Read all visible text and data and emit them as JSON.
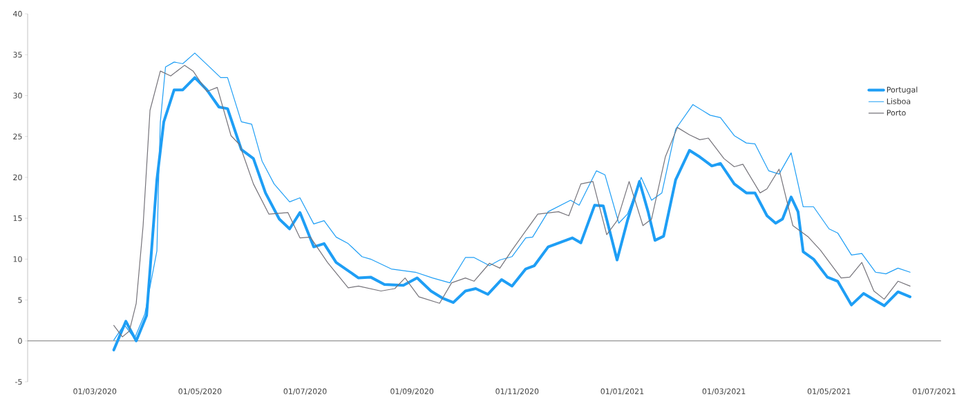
{
  "chart_data": {
    "type": "line",
    "xlim": [
      "2020-01-22",
      "2021-07-05"
    ],
    "ylim": [
      -5,
      40
    ],
    "xticks": [
      {
        "value": "2020-03-01",
        "label": "01/03/2020"
      },
      {
        "value": "2020-05-01",
        "label": "01/05/2020"
      },
      {
        "value": "2020-07-01",
        "label": "01/07/2020"
      },
      {
        "value": "2020-09-01",
        "label": "01/09/2020"
      },
      {
        "value": "2020-11-01",
        "label": "01/11/2020"
      },
      {
        "value": "2021-01-01",
        "label": "01/01/2021"
      },
      {
        "value": "2021-03-01",
        "label": "01/03/2021"
      },
      {
        "value": "2021-05-01",
        "label": "01/05/2021"
      },
      {
        "value": "2021-07-01",
        "label": "01/07/2021"
      }
    ],
    "yticks": [
      -5,
      0,
      5,
      10,
      15,
      20,
      25,
      30,
      35,
      40
    ],
    "legend": "right",
    "marker": "none",
    "line_style": "solid",
    "series": [
      {
        "name": "Portugal",
        "color": "#1e9ef5",
        "x": [
          "2020-03-12",
          "2020-03-19",
          "2020-03-25",
          "2020-03-31",
          "2020-04-06",
          "2020-04-10",
          "2020-04-16",
          "2020-04-21",
          "2020-04-28",
          "2020-05-05",
          "2020-05-12",
          "2020-05-17",
          "2020-05-25",
          "2020-06-01",
          "2020-06-08",
          "2020-06-16",
          "2020-06-22",
          "2020-06-28",
          "2020-07-06",
          "2020-07-12",
          "2020-07-19",
          "2020-08-01",
          "2020-08-08",
          "2020-08-16",
          "2020-08-27",
          "2020-09-04",
          "2020-09-12",
          "2020-09-19",
          "2020-09-25",
          "2020-10-02",
          "2020-10-08",
          "2020-10-15",
          "2020-10-23",
          "2020-10-29",
          "2020-11-06",
          "2020-11-11",
          "2020-11-19",
          "2020-12-03",
          "2020-12-08",
          "2020-12-16",
          "2020-12-21",
          "2020-12-29",
          "2021-01-04",
          "2021-01-11",
          "2021-01-16",
          "2021-01-20",
          "2021-01-25",
          "2021-02-01",
          "2021-02-09",
          "2021-02-15",
          "2021-02-22",
          "2021-02-27",
          "2021-03-07",
          "2021-03-14",
          "2021-03-19",
          "2021-03-26",
          "2021-03-31",
          "2021-04-04",
          "2021-04-09",
          "2021-04-13",
          "2021-04-16",
          "2021-04-22",
          "2021-04-30",
          "2021-05-06",
          "2021-05-14",
          "2021-05-21",
          "2021-06-02",
          "2021-06-10",
          "2021-06-17"
        ],
        "values": [
          -1.1,
          2.4,
          0.0,
          3.1,
          19.7,
          26.8,
          30.7,
          30.7,
          32.2,
          30.7,
          28.6,
          28.4,
          23.4,
          22.3,
          18.1,
          14.9,
          13.7,
          15.7,
          11.5,
          11.9,
          9.6,
          7.7,
          7.8,
          6.9,
          6.8,
          7.7,
          6.1,
          5.2,
          4.7,
          6.1,
          6.4,
          5.7,
          7.5,
          6.7,
          8.8,
          9.2,
          11.5,
          12.6,
          12.0,
          16.6,
          16.5,
          9.9,
          14.7,
          19.5,
          15.8,
          12.3,
          12.8,
          19.7,
          23.3,
          22.5,
          21.4,
          21.7,
          19.2,
          18.1,
          18.1,
          15.3,
          14.4,
          14.9,
          17.6,
          15.8,
          10.9,
          10.0,
          7.8,
          7.3,
          4.4,
          5.8,
          4.3,
          6.0,
          5.4
        ]
      },
      {
        "name": "Lisboa",
        "color": "#1e9ef5",
        "x": [
          "2020-03-12",
          "2020-03-18",
          "2020-03-24",
          "2020-03-30",
          "2020-04-06",
          "2020-04-07",
          "2020-04-08",
          "2020-04-11",
          "2020-04-16",
          "2020-04-21",
          "2020-04-28",
          "2020-05-05",
          "2020-05-13",
          "2020-05-17",
          "2020-05-25",
          "2020-05-31",
          "2020-06-06",
          "2020-06-13",
          "2020-06-22",
          "2020-06-28",
          "2020-07-06",
          "2020-07-12",
          "2020-07-19",
          "2020-07-26",
          "2020-08-03",
          "2020-08-08",
          "2020-08-20",
          "2020-09-03",
          "2020-09-13",
          "2020-09-23",
          "2020-10-02",
          "2020-10-07",
          "2020-10-16",
          "2020-10-22",
          "2020-10-29",
          "2020-11-06",
          "2020-11-10",
          "2020-11-19",
          "2020-12-02",
          "2020-12-07",
          "2020-12-17",
          "2020-12-22",
          "2020-12-30",
          "2021-01-04",
          "2021-01-12",
          "2021-01-18",
          "2021-01-24",
          "2021-02-01",
          "2021-02-11",
          "2021-02-21",
          "2021-02-27",
          "2021-03-07",
          "2021-03-14",
          "2021-03-19",
          "2021-03-27",
          "2021-04-02",
          "2021-04-09",
          "2021-04-16",
          "2021-04-22",
          "2021-05-01",
          "2021-05-06",
          "2021-05-14",
          "2021-05-20",
          "2021-05-28",
          "2021-06-03",
          "2021-06-10",
          "2021-06-17"
        ],
        "values": [
          0.1,
          2.0,
          0.3,
          3.3,
          11,
          19.7,
          26.8,
          33.5,
          34.1,
          33.9,
          35.2,
          33.8,
          32.2,
          32.2,
          26.8,
          26.5,
          22.0,
          19.2,
          17.0,
          17.5,
          14.3,
          14.7,
          12.7,
          11.9,
          10.3,
          10.0,
          8.8,
          8.4,
          7.7,
          7.1,
          10.2,
          10.2,
          9.2,
          9.9,
          10.3,
          12.6,
          12.7,
          15.8,
          17.2,
          16.6,
          20.8,
          20.3,
          14.4,
          15.5,
          20.0,
          17.2,
          18.1,
          25.9,
          28.9,
          27.6,
          27.3,
          25.1,
          24.2,
          24.1,
          20.8,
          20.4,
          23.0,
          16.4,
          16.4,
          13.7,
          13.2,
          10.5,
          10.7,
          8.4,
          8.2,
          8.9,
          8.4
        ]
      },
      {
        "name": "Porto",
        "color": "#75737a",
        "x": [
          "2020-03-12",
          "2020-03-17",
          "2020-03-21",
          "2020-03-25",
          "2020-03-29",
          "2020-04-02",
          "2020-04-08",
          "2020-04-14",
          "2020-04-22",
          "2020-04-27",
          "2020-05-05",
          "2020-05-11",
          "2020-05-19",
          "2020-05-24",
          "2020-06-01",
          "2020-06-10",
          "2020-06-21",
          "2020-06-28",
          "2020-07-04",
          "2020-07-14",
          "2020-07-26",
          "2020-08-01",
          "2020-08-14",
          "2020-08-22",
          "2020-08-28",
          "2020-09-05",
          "2020-09-17",
          "2020-09-24",
          "2020-10-02",
          "2020-10-07",
          "2020-10-16",
          "2020-10-22",
          "2020-10-29",
          "2020-11-13",
          "2020-11-25",
          "2020-12-01",
          "2020-12-08",
          "2020-12-15",
          "2020-12-23",
          "2020-12-29",
          "2021-01-05",
          "2021-01-13",
          "2021-01-18",
          "2021-01-26",
          "2021-02-02",
          "2021-02-09",
          "2021-02-15",
          "2021-02-20",
          "2021-03-01",
          "2021-03-07",
          "2021-03-12",
          "2021-03-22",
          "2021-03-26",
          "2021-04-02",
          "2021-04-10",
          "2021-04-19",
          "2021-04-26",
          "2021-05-08",
          "2021-05-13",
          "2021-05-20",
          "2021-05-27",
          "2021-06-02",
          "2021-06-10",
          "2021-06-17"
        ],
        "values": [
          1.9,
          0.5,
          1.2,
          4.6,
          14.1,
          28.2,
          33.0,
          32.4,
          33.7,
          33.0,
          30.5,
          31.0,
          25.1,
          24.0,
          19.2,
          15.5,
          15.7,
          12.6,
          12.7,
          9.6,
          6.5,
          6.7,
          6.1,
          6.4,
          7.7,
          5.4,
          4.6,
          7.1,
          7.7,
          7.3,
          9.5,
          8.9,
          11.1,
          15.5,
          15.8,
          15.3,
          19.2,
          19.5,
          13.0,
          14.7,
          19.5,
          14.1,
          14.9,
          22.5,
          26.1,
          25.2,
          24.6,
          24.8,
          22.3,
          21.3,
          21.6,
          18.1,
          18.6,
          21.0,
          14.1,
          12.7,
          11.1,
          7.7,
          7.8,
          9.6,
          6.1,
          5.1,
          7.3,
          6.7
        ]
      }
    ]
  }
}
